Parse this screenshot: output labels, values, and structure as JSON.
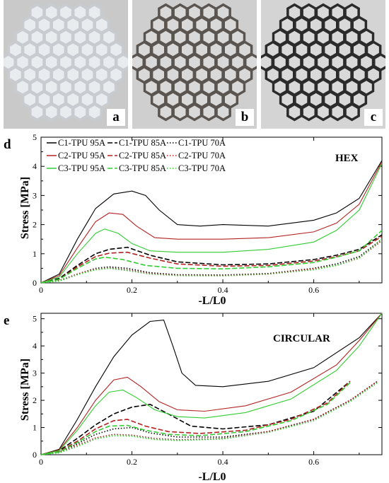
{
  "photos": [
    {
      "label": "a",
      "material_color": "#c8ccd0",
      "bg": "#c9c9c9"
    },
    {
      "label": "b",
      "material_color": "#5a5550",
      "bg": "#cfcfcf"
    },
    {
      "label": "c",
      "material_color": "#2b2b2b",
      "bg": "#d4d4d4"
    }
  ],
  "chart_data": [
    {
      "type": "line",
      "panel_label": "d",
      "annotation": "HEX",
      "xlabel": "-L/L0",
      "ylabel": "Stress [MPa]",
      "xlim": [
        0,
        0.75
      ],
      "ylim": [
        0,
        5
      ],
      "xticks": [
        "0",
        "0.2",
        "0.4",
        "0.6"
      ],
      "yticks": [
        "0",
        "1",
        "2",
        "3",
        "4",
        "5"
      ],
      "legend_position": "top-left",
      "series": [
        {
          "name": "C1-TPU 95A",
          "color": "#000000",
          "dash": "solid",
          "x": [
            0,
            0.04,
            0.08,
            0.12,
            0.16,
            0.2,
            0.23,
            0.26,
            0.3,
            0.35,
            0.4,
            0.5,
            0.6,
            0.65,
            0.7,
            0.75
          ],
          "y": [
            0,
            0.3,
            1.5,
            2.55,
            3.05,
            3.15,
            3.0,
            2.5,
            2.0,
            1.95,
            2.0,
            1.95,
            2.15,
            2.4,
            2.9,
            4.2
          ]
        },
        {
          "name": "C1-TPU 85A",
          "color": "#000000",
          "dash": "dashed",
          "x": [
            0,
            0.04,
            0.08,
            0.12,
            0.15,
            0.19,
            0.24,
            0.3,
            0.4,
            0.5,
            0.6,
            0.65,
            0.7,
            0.75
          ],
          "y": [
            0,
            0.15,
            0.6,
            1.0,
            1.15,
            1.22,
            0.95,
            0.72,
            0.62,
            0.65,
            0.8,
            0.95,
            1.15,
            1.65
          ]
        },
        {
          "name": "C1-TPU 70A",
          "color": "#000000",
          "dash": "dotted",
          "x": [
            0,
            0.04,
            0.08,
            0.12,
            0.15,
            0.19,
            0.24,
            0.3,
            0.4,
            0.5,
            0.6,
            0.65,
            0.7,
            0.75
          ],
          "y": [
            0,
            0.08,
            0.3,
            0.5,
            0.55,
            0.5,
            0.35,
            0.28,
            0.27,
            0.32,
            0.5,
            0.65,
            0.9,
            1.5
          ]
        },
        {
          "name": "C2-TPU 95A",
          "color": "#b22222",
          "dash": "solid",
          "x": [
            0,
            0.04,
            0.08,
            0.12,
            0.15,
            0.18,
            0.21,
            0.25,
            0.3,
            0.4,
            0.5,
            0.6,
            0.65,
            0.7,
            0.75
          ],
          "y": [
            0,
            0.25,
            1.2,
            2.1,
            2.4,
            2.35,
            1.95,
            1.55,
            1.5,
            1.5,
            1.55,
            1.75,
            2.05,
            2.7,
            4.15
          ]
        },
        {
          "name": "C2-TPU 85A",
          "color": "#b22222",
          "dash": "dashed",
          "x": [
            0,
            0.04,
            0.08,
            0.12,
            0.15,
            0.19,
            0.24,
            0.3,
            0.4,
            0.5,
            0.6,
            0.65,
            0.7,
            0.75
          ],
          "y": [
            0,
            0.12,
            0.55,
            0.9,
            1.02,
            1.05,
            0.85,
            0.65,
            0.57,
            0.6,
            0.75,
            0.9,
            1.1,
            1.6
          ]
        },
        {
          "name": "C2-TPU 70A",
          "color": "#b22222",
          "dash": "dotted",
          "x": [
            0,
            0.04,
            0.08,
            0.12,
            0.15,
            0.19,
            0.24,
            0.3,
            0.4,
            0.5,
            0.6,
            0.65,
            0.7,
            0.75
          ],
          "y": [
            0,
            0.07,
            0.3,
            0.48,
            0.52,
            0.45,
            0.32,
            0.26,
            0.25,
            0.3,
            0.48,
            0.6,
            0.85,
            1.45
          ]
        },
        {
          "name": "C3-TPU 95A",
          "color": "#32cd32",
          "dash": "solid",
          "x": [
            0,
            0.04,
            0.08,
            0.12,
            0.14,
            0.17,
            0.2,
            0.24,
            0.3,
            0.4,
            0.5,
            0.6,
            0.65,
            0.7,
            0.75
          ],
          "y": [
            0,
            0.2,
            1.0,
            1.7,
            1.85,
            1.7,
            1.35,
            1.1,
            1.05,
            1.05,
            1.15,
            1.4,
            1.8,
            2.5,
            4.1
          ]
        },
        {
          "name": "C3-TPU 85A",
          "color": "#32cd32",
          "dash": "dashed",
          "x": [
            0,
            0.04,
            0.08,
            0.12,
            0.14,
            0.18,
            0.23,
            0.3,
            0.4,
            0.5,
            0.6,
            0.65,
            0.7,
            0.75
          ],
          "y": [
            0,
            0.12,
            0.5,
            0.82,
            0.88,
            0.8,
            0.6,
            0.5,
            0.48,
            0.55,
            0.7,
            0.88,
            1.1,
            1.8
          ]
        },
        {
          "name": "C3-TPU 70A",
          "color": "#32cd32",
          "dash": "dotted",
          "x": [
            0,
            0.04,
            0.08,
            0.12,
            0.15,
            0.19,
            0.24,
            0.3,
            0.4,
            0.5,
            0.6,
            0.65,
            0.7,
            0.75
          ],
          "y": [
            0,
            0.06,
            0.28,
            0.45,
            0.5,
            0.42,
            0.3,
            0.25,
            0.24,
            0.3,
            0.45,
            0.6,
            0.85,
            1.5
          ]
        }
      ]
    },
    {
      "type": "line",
      "panel_label": "e",
      "annotation": "CIRCULAR",
      "xlabel": "-L/L0",
      "ylabel": "Stress [MPa]",
      "xlim": [
        0,
        0.75
      ],
      "ylim": [
        0,
        5.2
      ],
      "xticks": [
        "0",
        "0.2",
        "0.4",
        "0.6"
      ],
      "yticks": [
        "0",
        "1",
        "2",
        "3",
        "4",
        "5"
      ],
      "series": [
        {
          "name": "C1-TPU 95A",
          "color": "#000000",
          "dash": "solid",
          "x": [
            0,
            0.04,
            0.08,
            0.12,
            0.16,
            0.2,
            0.24,
            0.27,
            0.29,
            0.31,
            0.34,
            0.4,
            0.5,
            0.6,
            0.7,
            0.75
          ],
          "y": [
            0,
            0.2,
            1.3,
            2.5,
            3.6,
            4.4,
            4.9,
            4.95,
            4.0,
            3.0,
            2.55,
            2.5,
            2.7,
            3.2,
            4.3,
            5.2
          ]
        },
        {
          "name": "C1-TPU 85A",
          "color": "#000000",
          "dash": "dashed",
          "x": [
            0,
            0.04,
            0.08,
            0.12,
            0.16,
            0.2,
            0.24,
            0.28,
            0.33,
            0.4,
            0.5,
            0.6,
            0.68
          ],
          "y": [
            0,
            0.15,
            0.6,
            1.1,
            1.5,
            1.75,
            1.85,
            1.5,
            1.05,
            0.95,
            1.1,
            1.6,
            2.7
          ]
        },
        {
          "name": "C1-TPU 70A",
          "color": "#000000",
          "dash": "dotted",
          "x": [
            0,
            0.04,
            0.08,
            0.12,
            0.16,
            0.2,
            0.24,
            0.3,
            0.4,
            0.5,
            0.6,
            0.68,
            0.74
          ],
          "y": [
            0,
            0.1,
            0.4,
            0.75,
            0.95,
            1.0,
            0.8,
            0.65,
            0.65,
            0.85,
            1.3,
            2.0,
            2.7
          ]
        },
        {
          "name": "C2-TPU 95A",
          "color": "#b22222",
          "dash": "solid",
          "x": [
            0,
            0.04,
            0.08,
            0.12,
            0.16,
            0.19,
            0.22,
            0.26,
            0.3,
            0.36,
            0.45,
            0.55,
            0.65,
            0.7,
            0.75
          ],
          "y": [
            0,
            0.18,
            1.0,
            2.0,
            2.75,
            2.85,
            2.5,
            1.95,
            1.65,
            1.6,
            1.8,
            2.3,
            3.3,
            4.2,
            5.2
          ]
        },
        {
          "name": "C2-TPU 85A",
          "color": "#b22222",
          "dash": "dashed",
          "x": [
            0,
            0.04,
            0.08,
            0.12,
            0.16,
            0.19,
            0.23,
            0.28,
            0.35,
            0.45,
            0.55,
            0.63,
            0.68
          ],
          "y": [
            0,
            0.12,
            0.5,
            0.95,
            1.25,
            1.3,
            1.05,
            0.85,
            0.78,
            0.9,
            1.3,
            1.9,
            2.7
          ]
        },
        {
          "name": "C2-TPU 70A",
          "color": "#b22222",
          "dash": "dotted",
          "x": [
            0,
            0.04,
            0.08,
            0.12,
            0.16,
            0.2,
            0.25,
            0.3,
            0.4,
            0.5,
            0.6,
            0.68,
            0.74
          ],
          "y": [
            0,
            0.08,
            0.35,
            0.62,
            0.75,
            0.72,
            0.6,
            0.55,
            0.6,
            0.85,
            1.3,
            2.0,
            2.7
          ]
        },
        {
          "name": "C3-TPU 95A",
          "color": "#32cd32",
          "dash": "solid",
          "x": [
            0,
            0.04,
            0.08,
            0.12,
            0.15,
            0.18,
            0.21,
            0.25,
            0.3,
            0.36,
            0.45,
            0.55,
            0.65,
            0.7,
            0.75
          ],
          "y": [
            0,
            0.15,
            0.9,
            1.8,
            2.3,
            2.38,
            2.1,
            1.65,
            1.4,
            1.35,
            1.55,
            2.05,
            3.1,
            4.0,
            5.2
          ]
        },
        {
          "name": "C3-TPU 85A",
          "color": "#32cd32",
          "dash": "dashed",
          "x": [
            0,
            0.04,
            0.08,
            0.12,
            0.15,
            0.19,
            0.23,
            0.28,
            0.35,
            0.45,
            0.55,
            0.63,
            0.68
          ],
          "y": [
            0,
            0.1,
            0.45,
            0.85,
            1.05,
            1.08,
            0.9,
            0.75,
            0.7,
            0.85,
            1.25,
            1.85,
            2.65
          ]
        },
        {
          "name": "C3-TPU 70A",
          "color": "#32cd32",
          "dash": "dotted",
          "x": [
            0,
            0.04,
            0.08,
            0.12,
            0.16,
            0.2,
            0.25,
            0.3,
            0.4,
            0.5,
            0.6,
            0.68,
            0.74
          ],
          "y": [
            0,
            0.07,
            0.3,
            0.58,
            0.7,
            0.68,
            0.56,
            0.52,
            0.58,
            0.82,
            1.25,
            1.95,
            2.65
          ]
        }
      ]
    }
  ]
}
